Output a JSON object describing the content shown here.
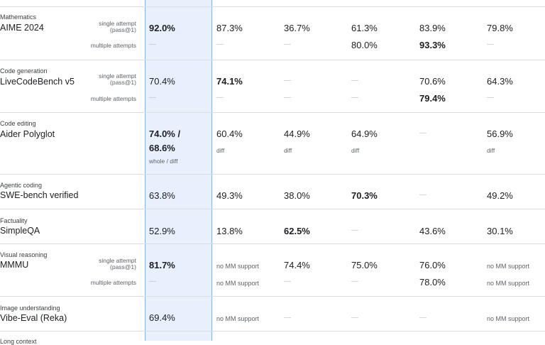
{
  "rows": {
    "math": {
      "category": "Mathematics",
      "benchmark": "AIME 2024",
      "label1": "single attempt",
      "label1b": "(pass@1)",
      "label2": "multiple attempts",
      "single": [
        "92.0%",
        "87.3%",
        "36.7%",
        "61.3%",
        "83.9%",
        "79.8%"
      ],
      "multi": [
        "—",
        "—",
        "—",
        "80.0%",
        "93.3%",
        "—"
      ]
    },
    "code": {
      "category": "Code generation",
      "benchmark": "LiveCodeBench v5",
      "label1": "single attempt",
      "label1b": "(pass@1)",
      "label2": "multiple attempts",
      "single": [
        "70.4%",
        "74.1%",
        "—",
        "—",
        "70.6%",
        "64.3%"
      ],
      "multi": [
        "—",
        "—",
        "—",
        "—",
        "79.4%",
        "—"
      ]
    },
    "edit": {
      "category": "Code editing",
      "benchmark": "Aider Polyglot",
      "main1": "74.0% /",
      "main2": "68.6%",
      "main_note": "whole / diff",
      "vals": [
        "60.4%",
        "44.9%",
        "64.9%",
        "—",
        "56.9%"
      ],
      "notes": [
        "diff",
        "diff",
        "diff",
        "diff"
      ]
    },
    "agent": {
      "category": "Agentic coding",
      "benchmark": "SWE-bench verified",
      "vals": [
        "63.8%",
        "49.3%",
        "38.0%",
        "70.3%",
        "—",
        "49.2%"
      ]
    },
    "fact": {
      "category": "Factuality",
      "benchmark": "SimpleQA",
      "vals": [
        "52.9%",
        "13.8%",
        "62.5%",
        "—",
        "43.6%",
        "30.1%"
      ]
    },
    "visual": {
      "category": "Visual reasoning",
      "benchmark": "MMMU",
      "label1": "single attempt",
      "label1b": "(pass@1)",
      "label2": "multiple attempts",
      "single": [
        "81.7%",
        "no MM support",
        "74.4%",
        "75.0%",
        "76.0%",
        "no MM support"
      ],
      "multi": [
        "—",
        "no MM support",
        "—",
        "—",
        "78.0%",
        "no MM support"
      ]
    },
    "image": {
      "category": "Image understanding",
      "benchmark": "Vibe-Eval (Reka)",
      "vals": [
        "69.4%",
        "no MM support",
        "—",
        "—",
        "—",
        "no MM support"
      ]
    },
    "next": {
      "category": "Long context"
    }
  }
}
